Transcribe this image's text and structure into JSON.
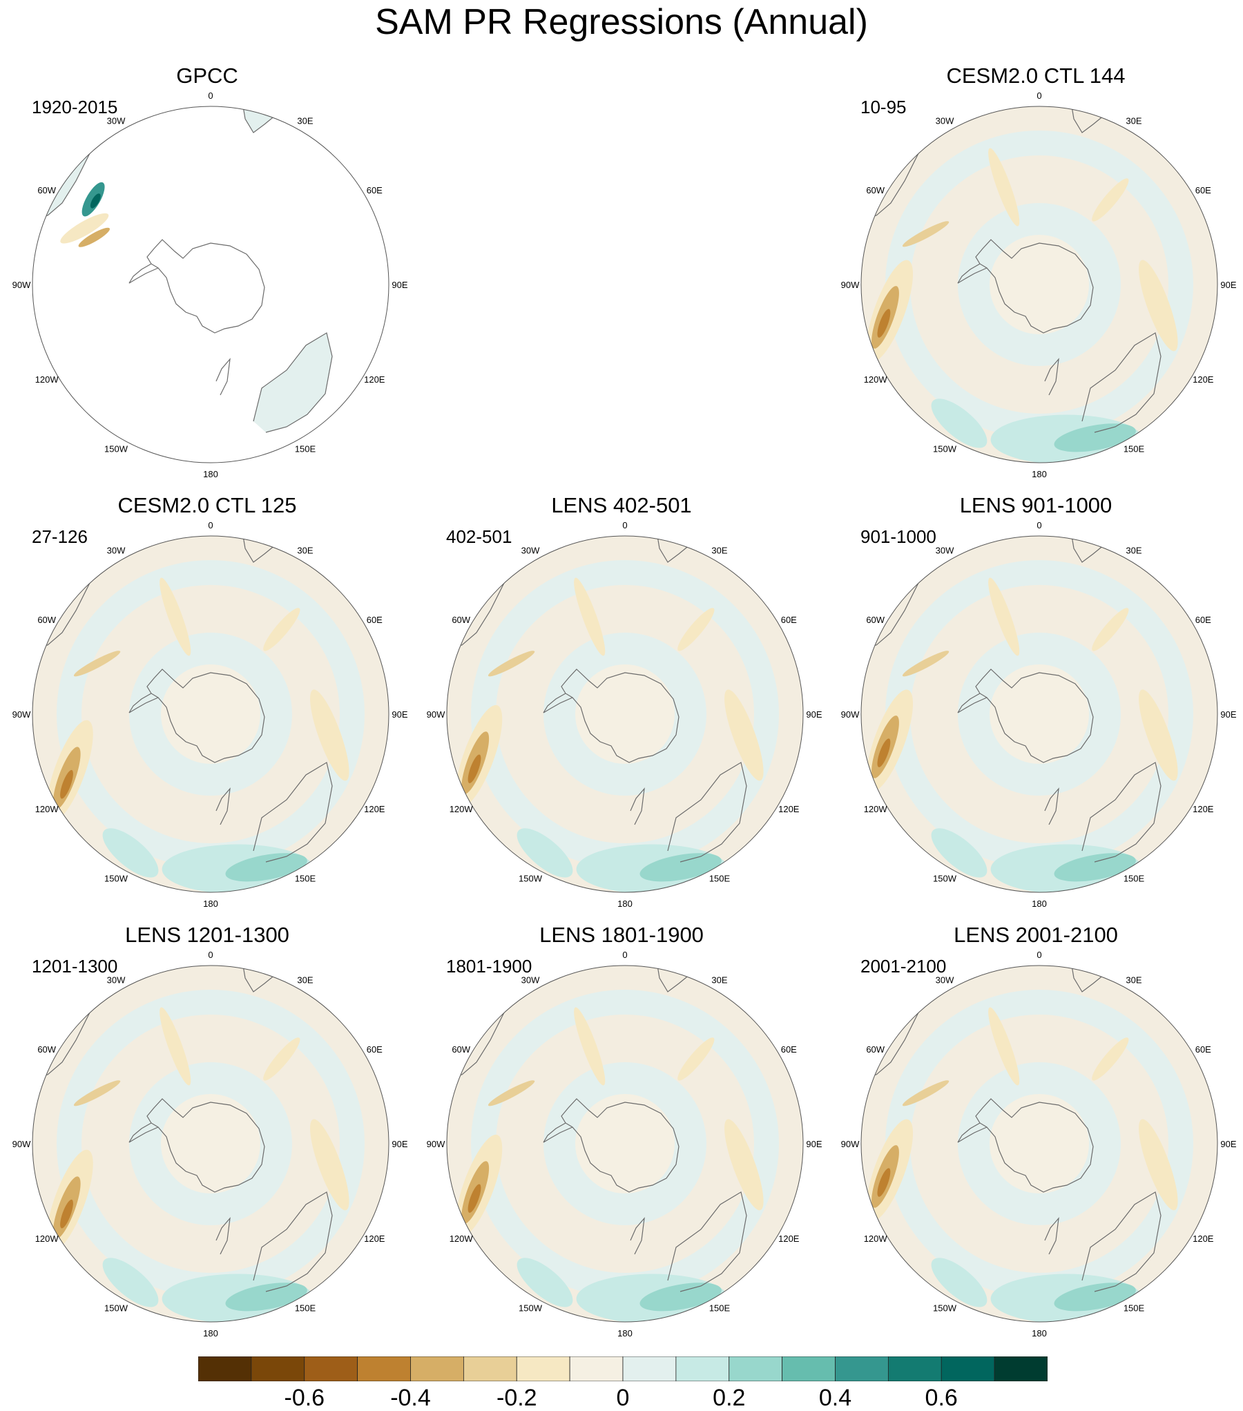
{
  "title": "SAM PR Regressions (Annual)",
  "panels": [
    {
      "title": "GPCC",
      "years": "1920-2015",
      "land_only": true
    },
    null,
    {
      "title": "CESM2.0 CTL 144",
      "years": "10-95",
      "land_only": false
    },
    {
      "title": "CESM2.0 CTL 125",
      "years": "27-126",
      "land_only": false
    },
    {
      "title": "LENS 402-501",
      "years": "402-501",
      "land_only": false
    },
    {
      "title": "LENS 901-1000",
      "years": "901-1000",
      "land_only": false
    },
    {
      "title": "LENS 1201-1300",
      "years": "1201-1300",
      "land_only": false
    },
    {
      "title": "LENS 1801-1900",
      "years": "1801-1900",
      "land_only": false
    },
    {
      "title": "LENS 2001-2100",
      "years": "2001-2100",
      "land_only": false
    }
  ],
  "longitude_labels": [
    "0",
    "30E",
    "60E",
    "90E",
    "120E",
    "150E",
    "180",
    "150W",
    "120W",
    "90W",
    "60W",
    "30W"
  ],
  "colorbar": {
    "colors": [
      "#543005",
      "#7a4709",
      "#9e5e18",
      "#be8130",
      "#d6ae66",
      "#e8cf97",
      "#f6e8c3",
      "#f5f0e3",
      "#e3f0ee",
      "#c7eae5",
      "#98d7cc",
      "#66bdae",
      "#35978f",
      "#137b71",
      "#01665e",
      "#003c30"
    ],
    "tick_labels": [
      "-0.6",
      "-0.4",
      "-0.2",
      "0",
      "0.2",
      "0.4",
      "0.6"
    ],
    "tick_values": [
      -0.6,
      -0.4,
      -0.2,
      0,
      0.2,
      0.4,
      0.6
    ],
    "range": [
      -0.8,
      0.8
    ]
  },
  "map_colors": {
    "outline": "#555555",
    "coast": "#6b6b6b",
    "background": "#f3ede0",
    "neutral_pos": "#e3f0ee"
  }
}
